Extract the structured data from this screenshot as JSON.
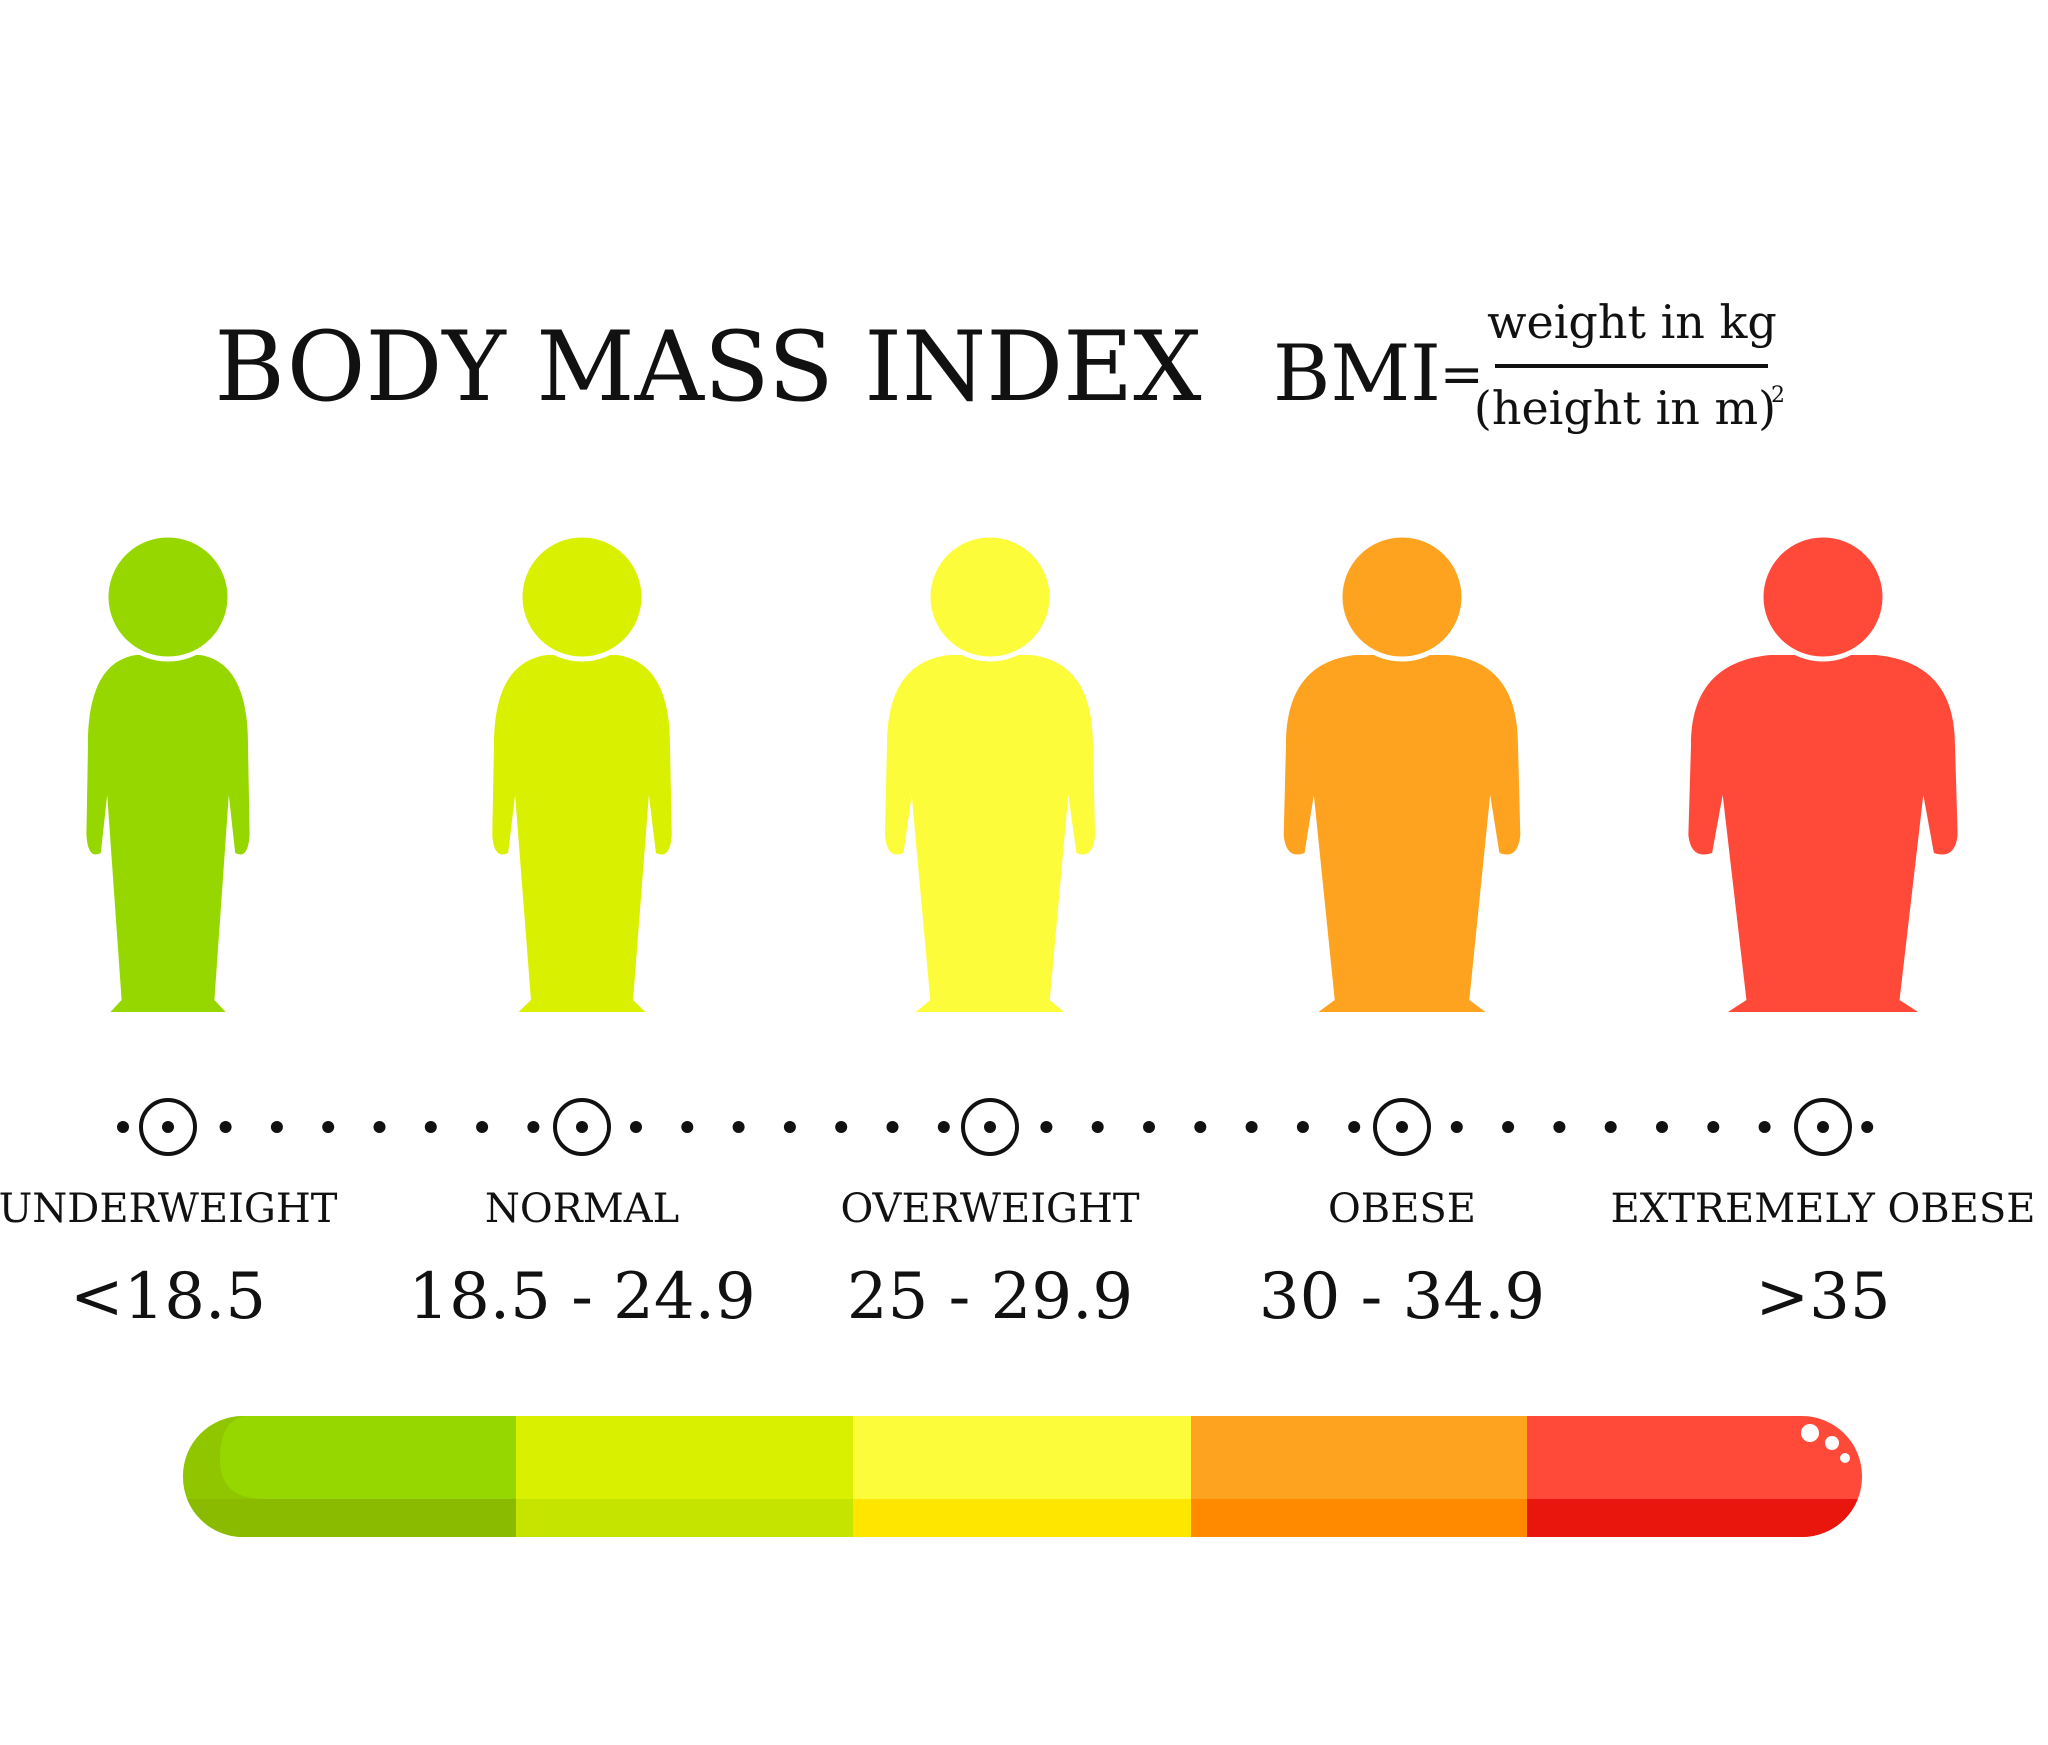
{
  "title": "BODY MASS INDEX",
  "formula": {
    "lhs": "BMI",
    "equals": "=",
    "numerator": "weight in kg",
    "denominator": "(height in m)",
    "exponent": "2"
  },
  "categories": [
    {
      "label": "UNDERWEIGHT",
      "range": "<18.5",
      "color": "#97d700",
      "shade": "#8abb00"
    },
    {
      "label": "NORMAL",
      "range": "18.5 - 24.9",
      "color": "#d9f000",
      "shade": "#c5e400"
    },
    {
      "label": "OVERWEIGHT",
      "range": "25 - 29.9",
      "color": "#fdfc3a",
      "shade": "#ffe600"
    },
    {
      "label": "OBESE",
      "range": "30 - 34.9",
      "color": "#fda31f",
      "shade": "#ff8a00"
    },
    {
      "label": "EXTREMELY OBESE",
      "range": ">35",
      "color": "#ff4a3a",
      "shade": "#e8160c"
    }
  ]
}
